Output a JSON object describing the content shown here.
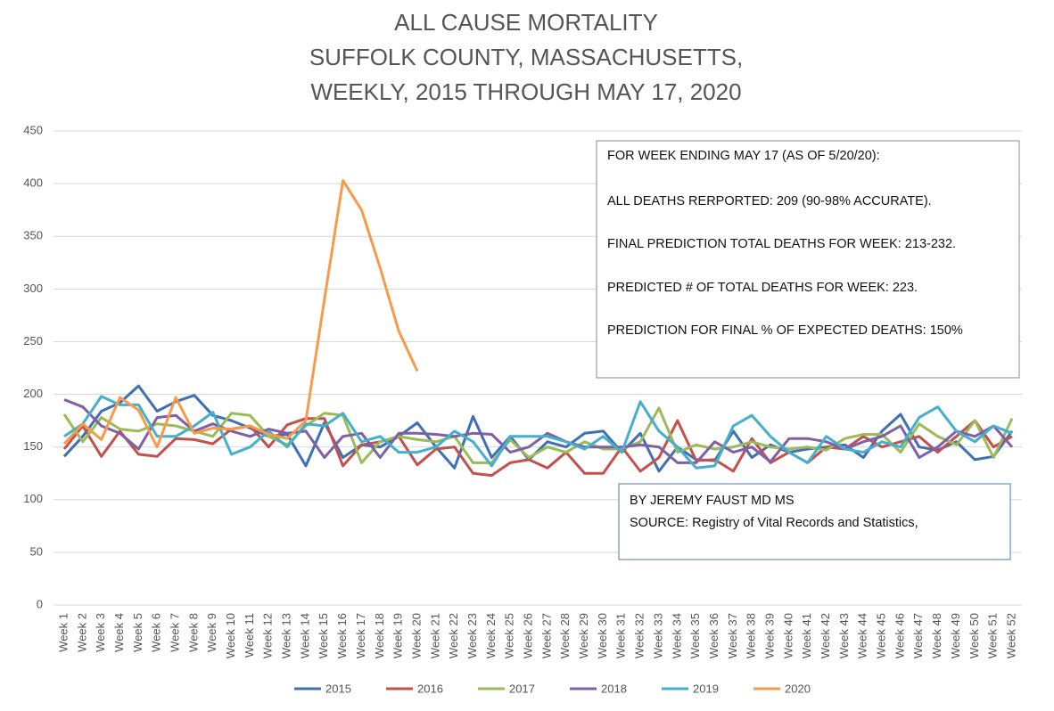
{
  "chart_data": {
    "type": "line",
    "title": [
      "ALL CAUSE MORTALITY",
      "SUFFOLK COUNTY, MASSACHUSETTS,",
      "WEEKLY, 2015 THROUGH MAY 17, 2020"
    ],
    "categories": [
      "Week 1",
      "Week 2",
      "Week 3",
      "Week 4",
      "Week 5",
      "Week 6",
      "Week 7",
      "Week 8",
      "Week 9",
      "Week 10",
      "Week 11",
      "Week 12",
      "Week 13",
      "Week 14",
      "Week 15",
      "Week 16",
      "Week 17",
      "Week 18",
      "Week 19",
      "Week 20",
      "Week 21",
      "Week 22",
      "Week 23",
      "Week 24",
      "Week 25",
      "Week 26",
      "Week 27",
      "Week 28",
      "Week 29",
      "Week 30",
      "Week 31",
      "Week 32",
      "Week 33",
      "Week 34",
      "Week 35",
      "Week 36",
      "Week 37",
      "Week 38",
      "Week 39",
      "Week 40",
      "Week 41",
      "Week 42",
      "Week 43",
      "Week 44",
      "Week 45",
      "Week 46",
      "Week 47",
      "Week 48",
      "Week 49",
      "Week 50",
      "Week 51",
      "Week 52"
    ],
    "ylim": [
      0,
      450
    ],
    "yticks": [
      0,
      50,
      100,
      150,
      200,
      250,
      300,
      350,
      400,
      450
    ],
    "grid": true,
    "legend": "bottom",
    "series": [
      {
        "name": "2015",
        "color": "#3f6fb4",
        "values": [
          141,
          160,
          184,
          192,
          208,
          184,
          193,
          199,
          180,
          175,
          168,
          160,
          162,
          132,
          173,
          140,
          152,
          150,
          160,
          173,
          150,
          130,
          179,
          140,
          160,
          138,
          155,
          150,
          163,
          165,
          145,
          163,
          127,
          150,
          138,
          137,
          165,
          140,
          152,
          145,
          148,
          150,
          152,
          140,
          165,
          181,
          150,
          147,
          155,
          138,
          141,
          165
        ]
      },
      {
        "name": "2016",
        "color": "#c4504c",
        "values": [
          148,
          170,
          141,
          165,
          143,
          141,
          158,
          157,
          153,
          167,
          170,
          150,
          171,
          177,
          177,
          132,
          152,
          155,
          160,
          133,
          148,
          150,
          125,
          123,
          135,
          138,
          130,
          145,
          125,
          125,
          150,
          127,
          140,
          175,
          137,
          138,
          127,
          158,
          135,
          145,
          135,
          150,
          148,
          160,
          150,
          155,
          160,
          145,
          160,
          175,
          150,
          160
        ]
      },
      {
        "name": "2017",
        "color": "#9bbb59",
        "values": [
          181,
          155,
          178,
          167,
          165,
          172,
          170,
          165,
          160,
          182,
          180,
          160,
          152,
          170,
          182,
          180,
          135,
          155,
          160,
          157,
          155,
          160,
          135,
          135,
          157,
          140,
          150,
          145,
          155,
          148,
          148,
          155,
          187,
          145,
          152,
          148,
          150,
          155,
          150,
          148,
          150,
          147,
          158,
          162,
          162,
          145,
          172,
          160,
          152,
          175,
          140,
          177
        ]
      },
      {
        "name": "2018",
        "color": "#7f5fa6",
        "values": [
          195,
          188,
          170,
          163,
          148,
          178,
          180,
          165,
          172,
          165,
          160,
          167,
          163,
          165,
          140,
          160,
          163,
          140,
          163,
          163,
          162,
          160,
          163,
          162,
          145,
          150,
          163,
          155,
          150,
          150,
          150,
          152,
          150,
          135,
          135,
          155,
          145,
          150,
          136,
          158,
          158,
          155,
          148,
          155,
          160,
          170,
          140,
          150,
          165,
          160,
          170,
          150
        ]
      },
      {
        "name": "2019",
        "color": "#44b0cc",
        "values": [
          160,
          172,
          198,
          190,
          190,
          160,
          160,
          170,
          183,
          143,
          150,
          165,
          150,
          172,
          170,
          182,
          155,
          160,
          145,
          145,
          150,
          165,
          155,
          132,
          160,
          160,
          160,
          155,
          148,
          160,
          145,
          193,
          165,
          150,
          130,
          132,
          170,
          180,
          160,
          145,
          135,
          160,
          148,
          145,
          155,
          150,
          178,
          188,
          165,
          155,
          170,
          163
        ]
      },
      {
        "name": "2020",
        "color": "#f79a4a",
        "values": [
          153,
          172,
          157,
          197,
          185,
          150,
          197,
          163,
          168,
          167,
          170,
          162,
          158,
          175,
          290,
          403,
          375,
          320,
          260,
          222,
          null,
          null,
          null,
          null,
          null,
          null,
          null,
          null,
          null,
          null,
          null,
          null,
          null,
          null,
          null,
          null,
          null,
          null,
          null,
          null,
          null,
          null,
          null,
          null,
          null,
          null,
          null,
          null,
          null,
          null,
          null,
          null
        ]
      }
    ],
    "annotations": [
      [
        "FOR WEEK ENDING MAY 17 (AS OF 5/20/20):",
        "ALL DEATHS RERPORTED: 209 (90-98% ACCURATE).",
        "FINAL PREDICTION TOTAL DEATHS FOR WEEK: 213-232.",
        "PREDICTED # OF TOTAL DEATHS FOR WEEK: 223.",
        "PREDICTION FOR FINAL % OF EXPECTED DEATHS: 150%"
      ],
      [
        "BY JEREMY FAUST MD MS",
        "SOURCE:  Registry of Vital Records and Statistics,"
      ]
    ]
  }
}
